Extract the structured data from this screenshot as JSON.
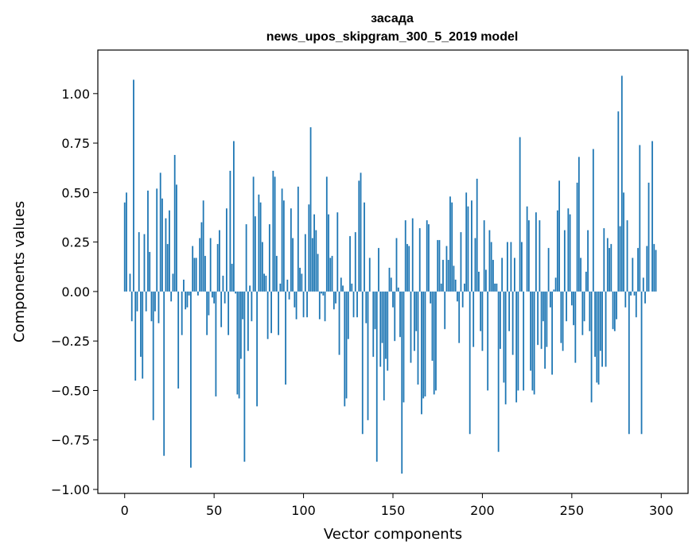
{
  "chart_data": {
    "type": "bar",
    "title": "засада",
    "subtitle": "news_upos_skipgram_300_5_2019 model",
    "xlabel": "Vector components",
    "ylabel": "Components values",
    "xlim": [
      -15,
      315
    ],
    "ylim": [
      -1.02,
      1.22
    ],
    "xticks": [
      0,
      50,
      100,
      150,
      200,
      250,
      300
    ],
    "yticks": [
      1.0,
      0.75,
      0.5,
      0.25,
      0.0,
      -0.25,
      -0.5,
      -0.75,
      -1.0
    ],
    "ytick_labels": [
      "1.00",
      "0.75",
      "0.50",
      "0.25",
      "0.00",
      "−0.25",
      "−0.50",
      "−0.75",
      "−1.00"
    ],
    "grid": false,
    "bar_color": "#1f77b4",
    "x_start": 0,
    "values": [
      0.45,
      0.5,
      0.0,
      0.09,
      -0.15,
      1.07,
      -0.45,
      -0.1,
      0.3,
      -0.33,
      -0.44,
      0.29,
      -0.1,
      0.51,
      0.2,
      -0.15,
      -0.65,
      -0.1,
      0.52,
      -0.16,
      0.6,
      0.47,
      -0.83,
      0.37,
      0.24,
      0.41,
      -0.05,
      0.09,
      0.69,
      0.54,
      -0.49,
      0.0,
      -0.22,
      0.06,
      -0.09,
      -0.08,
      -0.02,
      -0.89,
      0.23,
      0.17,
      0.17,
      -0.02,
      0.27,
      0.35,
      0.46,
      0.18,
      -0.22,
      -0.12,
      0.27,
      -0.03,
      -0.06,
      -0.53,
      0.24,
      0.31,
      -0.18,
      0.08,
      -0.06,
      0.42,
      -0.22,
      0.61,
      0.14,
      0.76,
      -0.01,
      -0.52,
      -0.54,
      -0.34,
      -0.14,
      -0.86,
      0.34,
      -0.3,
      0.03,
      -0.15,
      0.58,
      0.38,
      -0.58,
      0.49,
      0.45,
      0.25,
      0.09,
      0.08,
      -0.24,
      0.34,
      -0.21,
      0.61,
      0.58,
      0.18,
      -0.22,
      0.04,
      0.52,
      0.46,
      -0.47,
      0.06,
      -0.04,
      0.42,
      0.27,
      -0.08,
      -0.14,
      0.53,
      0.12,
      0.09,
      -0.13,
      0.29,
      -0.13,
      0.44,
      0.83,
      0.27,
      0.39,
      0.31,
      0.19,
      -0.14,
      -0.01,
      -0.02,
      -0.15,
      0.58,
      0.39,
      0.17,
      0.18,
      -0.09,
      -0.06,
      0.4,
      -0.32,
      0.07,
      0.03,
      -0.58,
      -0.54,
      -0.24,
      0.28,
      0.04,
      -0.13,
      0.3,
      -0.13,
      0.56,
      0.6,
      -0.72,
      0.45,
      -0.16,
      -0.65,
      0.17,
      0.0,
      -0.33,
      -0.19,
      -0.86,
      0.22,
      -0.38,
      -0.26,
      -0.55,
      -0.34,
      -0.4,
      0.12,
      0.07,
      -0.08,
      -0.25,
      0.27,
      0.02,
      -0.23,
      -0.92,
      -0.56,
      0.36,
      0.24,
      0.23,
      -0.36,
      0.37,
      -0.3,
      -0.2,
      -0.47,
      0.32,
      -0.62,
      -0.54,
      -0.53,
      0.36,
      0.34,
      -0.06,
      -0.35,
      -0.52,
      -0.5,
      0.26,
      0.26,
      0.04,
      0.16,
      -0.19,
      0.23,
      0.16,
      0.48,
      0.45,
      0.13,
      0.06,
      -0.05,
      -0.26,
      0.3,
      -0.08,
      0.04,
      0.5,
      0.43,
      -0.72,
      0.46,
      -0.28,
      0.27,
      0.57,
      0.1,
      -0.2,
      -0.3,
      0.36,
      0.11,
      -0.5,
      0.31,
      0.25,
      0.16,
      0.04,
      0.04,
      -0.81,
      -0.29,
      0.17,
      -0.46,
      -0.57,
      0.25,
      -0.2,
      0.25,
      -0.32,
      0.17,
      -0.56,
      -0.5,
      0.78,
      0.25,
      -0.5,
      0.0,
      0.43,
      0.36,
      -0.4,
      -0.5,
      -0.52,
      0.4,
      -0.27,
      0.36,
      -0.29,
      -0.15,
      -0.39,
      -0.28,
      0.22,
      -0.08,
      -0.42,
      0.01,
      0.07,
      0.41,
      0.56,
      -0.26,
      -0.3,
      0.31,
      -0.15,
      0.42,
      0.39,
      -0.07,
      -0.17,
      -0.36,
      0.55,
      0.68,
      0.17,
      -0.22,
      -0.15,
      0.1,
      0.31,
      -0.2,
      -0.56,
      0.72,
      -0.33,
      -0.46,
      -0.47,
      -0.3,
      -0.38,
      0.32,
      -0.38,
      0.27,
      0.22,
      0.24,
      -0.19,
      -0.2,
      -0.14,
      0.91,
      0.33,
      1.09,
      0.5,
      -0.08,
      0.36,
      -0.72,
      -0.02,
      0.17,
      -0.02,
      -0.13,
      0.22,
      0.74,
      -0.72,
      0.07,
      -0.06,
      0.23,
      0.55,
      0.0,
      0.76,
      0.24,
      0.21
    ]
  }
}
